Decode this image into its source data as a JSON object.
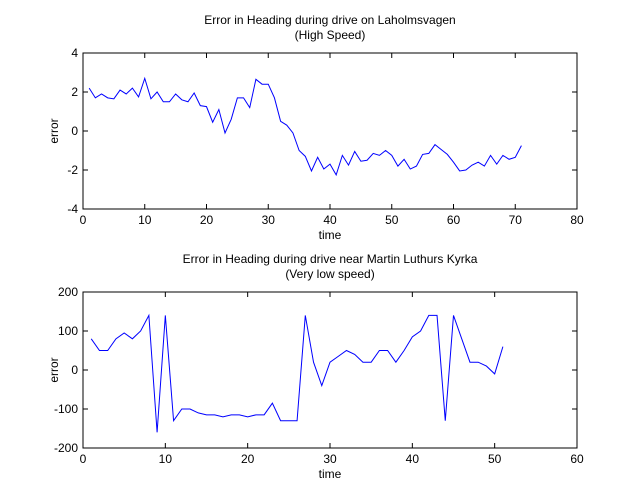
{
  "chart_data": [
    {
      "type": "line",
      "title": "Error in Heading during drive on Laholmsvagen",
      "subtitle": "(High Speed)",
      "xlabel": "time",
      "ylabel": "error",
      "xlim": [
        0,
        80
      ],
      "ylim": [
        -4,
        4
      ],
      "xticks": [
        0,
        10,
        20,
        30,
        40,
        50,
        60,
        70,
        80
      ],
      "yticks": [
        -4,
        -2,
        0,
        2,
        4
      ],
      "xtick_labels": [
        "0",
        "10",
        "20",
        "30",
        "40",
        "50",
        "60",
        "70",
        "80"
      ],
      "ytick_labels": [
        "-4",
        "-2",
        "0",
        "2",
        "4"
      ],
      "grid": false,
      "color": "#0000ff",
      "series": [
        {
          "x": [
            1,
            2,
            3,
            4,
            5,
            6,
            7,
            8,
            9,
            10,
            11,
            12,
            13,
            14,
            15,
            16,
            17,
            18,
            19,
            20,
            21,
            22,
            23,
            24,
            25,
            26,
            27,
            28,
            29,
            30,
            31,
            32,
            33,
            34,
            35,
            36,
            37,
            38,
            39,
            40,
            41,
            42,
            43,
            44,
            45,
            46,
            47,
            48,
            49,
            50,
            51,
            52,
            53,
            54,
            55,
            56,
            57,
            58,
            59,
            60,
            61,
            62,
            63,
            64,
            65,
            66,
            67,
            68,
            69,
            70,
            71
          ],
          "y": [
            2.2,
            1.7,
            1.9,
            1.7,
            1.65,
            2.1,
            1.9,
            2.2,
            1.75,
            2.7,
            1.65,
            2.0,
            1.5,
            1.5,
            1.9,
            1.6,
            1.5,
            1.95,
            1.3,
            1.25,
            0.45,
            1.1,
            -0.1,
            0.6,
            1.7,
            1.7,
            1.2,
            2.65,
            2.4,
            2.4,
            1.7,
            0.5,
            0.3,
            -0.1,
            -1.0,
            -1.3,
            -2.05,
            -1.35,
            -1.95,
            -1.7,
            -2.25,
            -1.25,
            -1.75,
            -1.05,
            -1.55,
            -1.5,
            -1.15,
            -1.25,
            -1.0,
            -1.25,
            -1.8,
            -1.45,
            -1.95,
            -1.8,
            -1.2,
            -1.15,
            -0.7,
            -0.95,
            -1.2,
            -1.6,
            -2.05,
            -2.0,
            -1.75,
            -1.6,
            -1.8,
            -1.25,
            -1.7,
            -1.25,
            -1.45,
            -1.35,
            -0.75
          ]
        }
      ]
    },
    {
      "type": "line",
      "title": "Error in Heading during drive near Martin Luthurs Kyrka",
      "subtitle": "(Very low speed)",
      "xlabel": "time",
      "ylabel": "error",
      "xlim": [
        0,
        60
      ],
      "ylim": [
        -200,
        200
      ],
      "xticks": [
        0,
        10,
        20,
        30,
        40,
        50,
        60
      ],
      "yticks": [
        -200,
        -100,
        0,
        100,
        200
      ],
      "xtick_labels": [
        "0",
        "10",
        "20",
        "30",
        "40",
        "50",
        "60"
      ],
      "ytick_labels": [
        "-200",
        "-100",
        "0",
        "100",
        "200"
      ],
      "grid": false,
      "color": "#0000ff",
      "series": [
        {
          "x": [
            1,
            2,
            3,
            4,
            5,
            6,
            7,
            8,
            9,
            10,
            11,
            12,
            13,
            14,
            15,
            16,
            17,
            18,
            19,
            20,
            21,
            22,
            23,
            24,
            25,
            26,
            27,
            28,
            29,
            30,
            31,
            32,
            33,
            34,
            35,
            36,
            37,
            38,
            39,
            40,
            41,
            42,
            43,
            44,
            45,
            46,
            47,
            48,
            49,
            50,
            51
          ],
          "y": [
            80,
            50,
            50,
            80,
            95,
            80,
            100,
            140,
            -160,
            140,
            -130,
            -100,
            -100,
            -110,
            -115,
            -115,
            -120,
            -115,
            -115,
            -120,
            -115,
            -115,
            -85,
            -130,
            -130,
            -130,
            140,
            20,
            -40,
            20,
            35,
            50,
            40,
            20,
            20,
            50,
            50,
            20,
            50,
            85,
            100,
            140,
            140,
            -130,
            140,
            80,
            20,
            20,
            10,
            -10,
            60
          ]
        }
      ]
    }
  ]
}
